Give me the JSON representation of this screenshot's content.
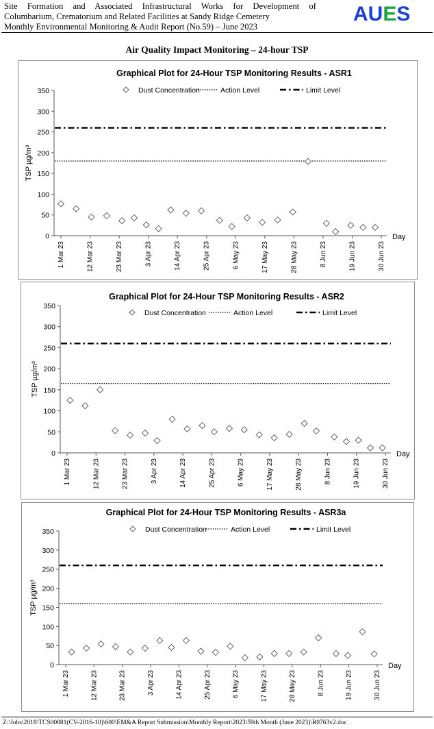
{
  "header": {
    "line1": "Site Formation and Associated Infrastructural Works for Development of",
    "line2": "Columbarium, Crematorium and Related Facilities at Sandy Ridge Cemetery",
    "line3": "Monthly Environmental Monitoring & Audit Report (No.59) – June 2023",
    "logo": "AUES",
    "logo_colors": [
      "#1a3fd6",
      "#1a3fd6",
      "#15a83a",
      "#1a3fd6"
    ]
  },
  "page_title": "Air Quality Impact Monitoring – 24-hour TSP",
  "footer": "Z:\\Jobs\\2018\\TCS00881(CV-2016-10)\\600\\EM&A Report Submission\\Monthly Report\\2023\\59th Month (June 2023)\\R0763v2.doc",
  "chart_data": [
    {
      "type": "scatter",
      "title": "Graphical Plot for 24-Hour TSP Monitoring Results - ASR1",
      "ylabel": "TSP µg/m³",
      "xlabel": "Day",
      "ylim": [
        0,
        350
      ],
      "yticks": [
        "0",
        "50",
        "100",
        "150",
        "200",
        "250",
        "300",
        "350"
      ],
      "xticks": [
        "1 Mar 23",
        "12 Mar 23",
        "23 Mar 23",
        "3 Apr 23",
        "14 Apr 23",
        "25 Apr 23",
        "6 May 23",
        "17 May 23",
        "28 May 23",
        "8 Jun 23",
        "19 Jun 23",
        "30 Jun 23"
      ],
      "legend": [
        "Dust Concentration",
        "Action Level",
        "Limit Level"
      ],
      "action_level": 180,
      "limit_level": 260,
      "x": [
        0,
        5,
        10,
        15,
        20,
        24,
        28,
        32,
        36,
        41,
        46,
        52,
        56,
        61,
        66,
        71,
        76,
        81,
        87,
        90,
        95,
        99,
        103
      ],
      "values": [
        77,
        65,
        45,
        48,
        36,
        43,
        26,
        17,
        62,
        54,
        60,
        37,
        22,
        43,
        32,
        38,
        57,
        179,
        30,
        10,
        25,
        20,
        20
      ]
    },
    {
      "type": "scatter",
      "title": "Graphical Plot for 24-Hour TSP Monitoring Results - ASR2",
      "ylabel": "TSP µg/m³",
      "xlabel": "Day",
      "ylim": [
        0,
        350
      ],
      "yticks": [
        "0",
        "50",
        "100",
        "150",
        "200",
        "250",
        "300",
        "350"
      ],
      "xticks": [
        "1 Mar 23",
        "12 Mar 23",
        "23 Mar 23",
        "3 Apr 23",
        "14 Apr 23",
        "25 Apr 23",
        "6 May 23",
        "17 May 23",
        "28 May 23",
        "8 Jun 23",
        "19 Jun 23",
        "30 Jun 23"
      ],
      "legend": [
        "Dust Concentration",
        "Action Level",
        "Limit Level"
      ],
      "action_level": 165,
      "limit_level": 260,
      "x": [
        1,
        6,
        11,
        16,
        21,
        26,
        30,
        35,
        40,
        45,
        49,
        54,
        59,
        64,
        69,
        74,
        79,
        83,
        89,
        93,
        97,
        101,
        105
      ],
      "values": [
        125,
        112,
        150,
        53,
        42,
        47,
        29,
        80,
        57,
        65,
        50,
        58,
        55,
        43,
        36,
        44,
        70,
        52,
        38,
        27,
        30,
        12,
        12
      ]
    },
    {
      "type": "scatter",
      "title": "Graphical Plot for 24-Hour TSP Monitoring Results - ASR3a",
      "ylabel": "TSP µg/m³",
      "xlabel": "Day",
      "ylim": [
        0,
        350
      ],
      "yticks": [
        "0",
        "50",
        "100",
        "150",
        "200",
        "250",
        "300",
        "350"
      ],
      "xticks": [
        "1 Mar 23",
        "12 Mar 23",
        "23 Mar 23",
        "3 Apr 23",
        "14 Apr 23",
        "25 Apr 23",
        "6 May 23",
        "17 May 23",
        "28 May 23",
        "8 Jun 23",
        "19 Jun 23",
        "30 Jun 23"
      ],
      "legend": [
        "Dust Concentration",
        "Action Level",
        "Limit Level"
      ],
      "action_level": 160,
      "limit_level": 260,
      "x": [
        2,
        7,
        12,
        17,
        22,
        27,
        32,
        36,
        41,
        46,
        51,
        56,
        61,
        66,
        71,
        76,
        81,
        86,
        92,
        96,
        101,
        105
      ],
      "values": [
        33,
        43,
        54,
        47,
        33,
        43,
        63,
        45,
        63,
        35,
        32,
        48,
        18,
        20,
        29,
        29,
        33,
        70,
        29,
        24,
        86,
        28
      ]
    }
  ]
}
